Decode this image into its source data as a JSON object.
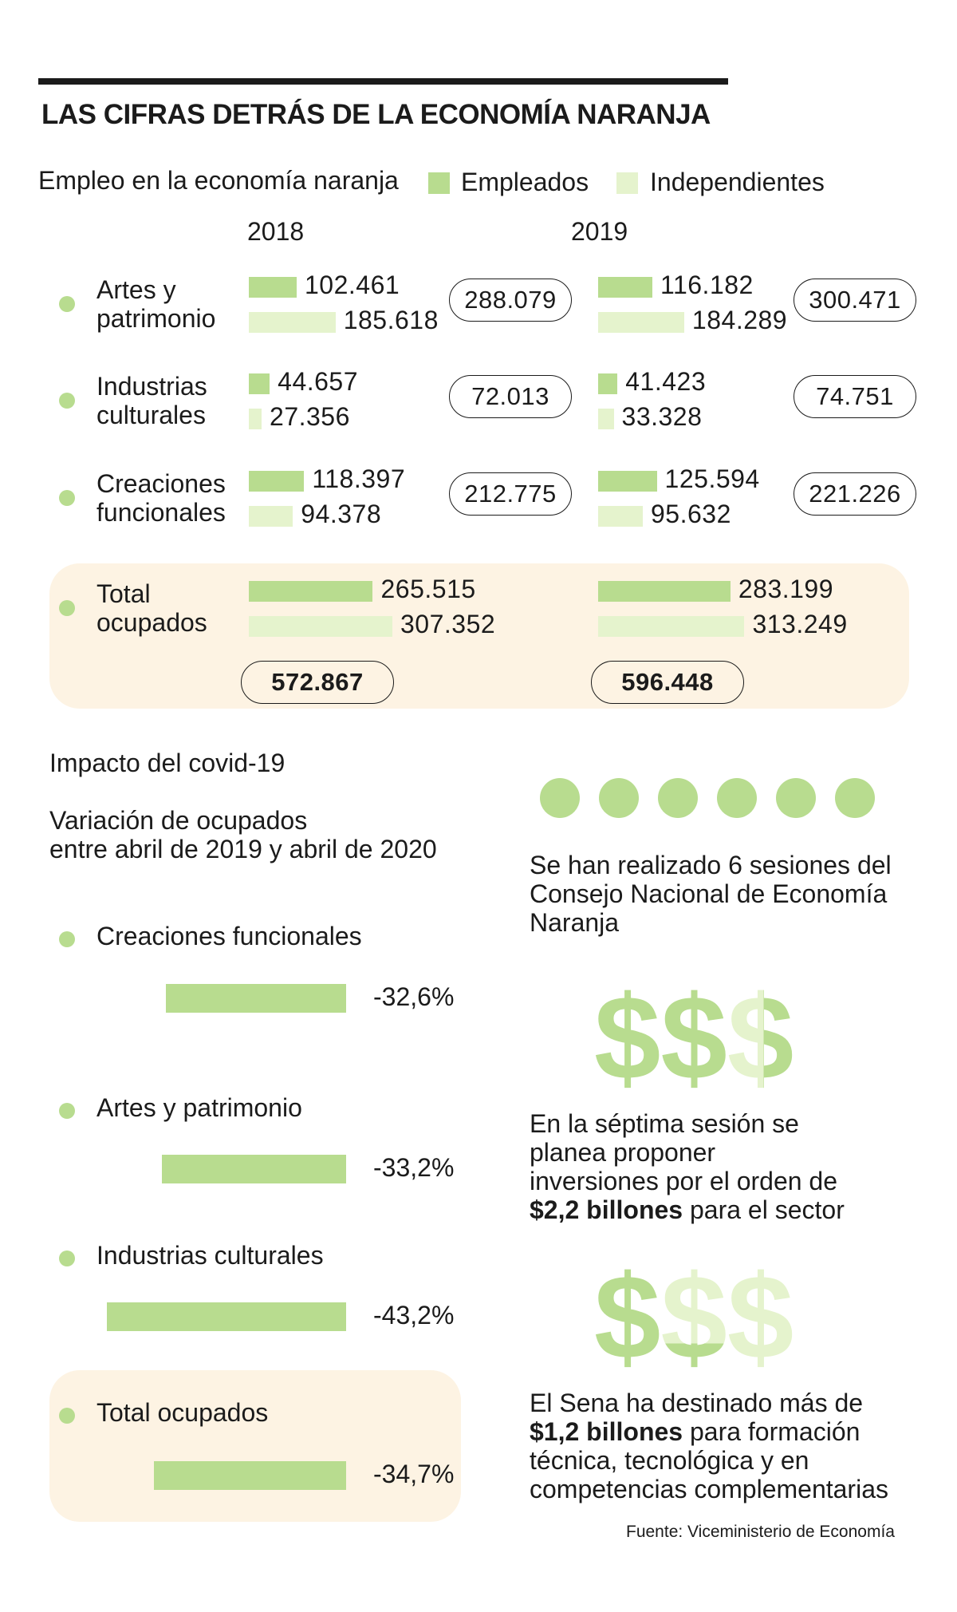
{
  "title": "LAS CIFRAS DETRÁS DE LA ECONOMÍA NARANJA",
  "employment": {
    "subtitle": "Empleo en la economía naranja",
    "legend": {
      "employed": "Empleados",
      "independent": "Independientes"
    },
    "years": [
      "2018",
      "2019"
    ]
  },
  "colors": {
    "employed": "#b8dc8f",
    "independent": "#e5f3cd",
    "panel": "#fdf3e3",
    "text": "#1b1b1b"
  },
  "covid": {
    "heading": "Impacto del covid-19",
    "subtitle_line1": "Variación de ocupados",
    "subtitle_line2": "entre abril de 2019 y abril de 2020"
  },
  "facts": {
    "sessions_line1": "Se han realizado 6 sesiones del",
    "sessions_line2": "Consejo Nacional de Economía",
    "sessions_line3": "Naranja",
    "session_count": 6,
    "investment_line1": "En la séptima sesión se",
    "investment_line2": "planea proponer",
    "investment_line3": "inversiones por el orden de",
    "investment_bold": "$2,2 billones",
    "investment_rest": " para el sector",
    "sena_line1": "El Sena ha destinado más de",
    "sena_bold": "$1,2 billones",
    "sena_rest": " para formación",
    "sena_line3": "técnica, tecnológica y en",
    "sena_line4": "competencias complementarias",
    "dollar_sign": "$"
  },
  "source": "Fuente: Viceministerio de Economía",
  "chart_data": [
    {
      "type": "bar",
      "title": "Empleo en la economía naranja",
      "categories": [
        "Artes y patrimonio",
        "Industrias culturales",
        "Creaciones funcionales",
        "Total ocupados"
      ],
      "category_lines": [
        [
          "Artes y",
          "patrimonio"
        ],
        [
          "Industrias",
          "culturales"
        ],
        [
          "Creaciones",
          "funcionales"
        ],
        [
          "Total",
          "ocupados"
        ]
      ],
      "series": [
        {
          "name": "Empleados 2018",
          "values": [
            102461,
            44657,
            118397,
            265515
          ],
          "labels": [
            "102.461",
            "44.657",
            "118.397",
            "265.515"
          ]
        },
        {
          "name": "Independientes 2018",
          "values": [
            185618,
            27356,
            94378,
            307352
          ],
          "labels": [
            "185.618",
            "27.356",
            "94.378",
            "307.352"
          ]
        },
        {
          "name": "Empleados 2019",
          "values": [
            116182,
            41423,
            125594,
            283199
          ],
          "labels": [
            "116.182",
            "41.423",
            "125.594",
            "283.199"
          ]
        },
        {
          "name": "Independientes 2019",
          "values": [
            184289,
            33328,
            95632,
            313249
          ],
          "labels": [
            "184.289",
            "33.328",
            "95.632",
            "313.249"
          ]
        }
      ],
      "totals": {
        "2018": {
          "values": [
            288079,
            72013,
            212775,
            572867
          ],
          "labels": [
            "288.079",
            "72.013",
            "212.775",
            "572.867"
          ]
        },
        "2019": {
          "values": [
            300471,
            74751,
            221226,
            596448
          ],
          "labels": [
            "300.471",
            "74.751",
            "221.226",
            "596.448"
          ]
        }
      }
    },
    {
      "type": "bar",
      "title": "Variación de ocupados entre abril de 2019 y abril de 2020",
      "categories": [
        "Creaciones funcionales",
        "Artes y patrimonio",
        "Industrias culturales",
        "Total ocupados"
      ],
      "values": [
        -32.6,
        -33.2,
        -43.2,
        -34.7
      ],
      "labels": [
        "-32,6%",
        "-33,2%",
        "-43,2%",
        "-34,7%"
      ]
    }
  ]
}
